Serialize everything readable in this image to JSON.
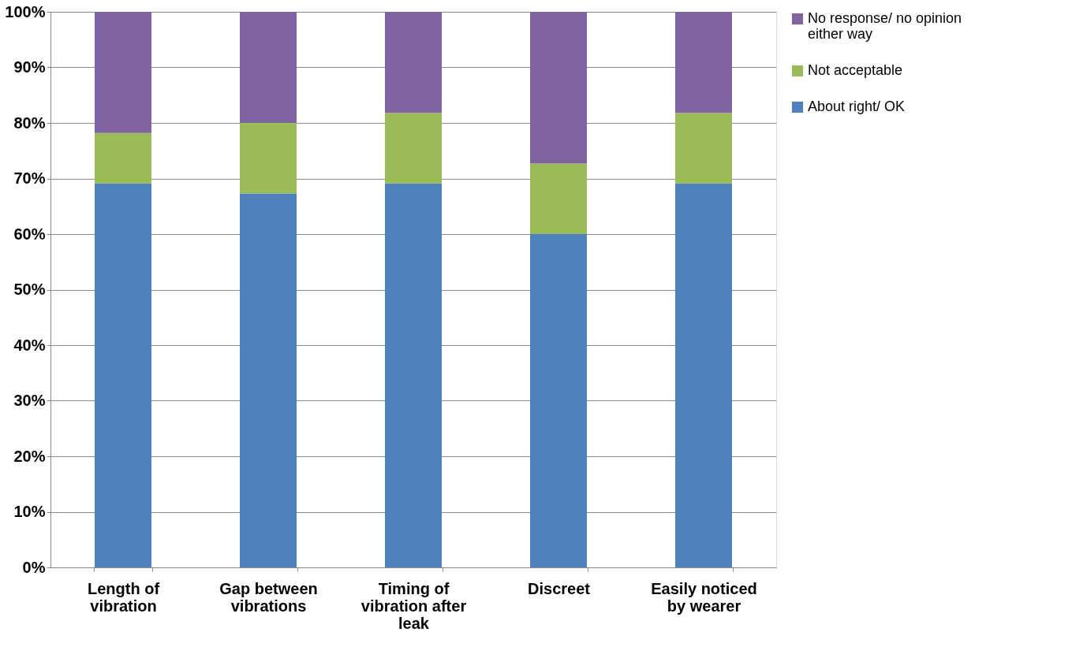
{
  "chart_data": {
    "type": "bar",
    "stacked": true,
    "categories": [
      "Length of vibration",
      "Gap between vibrations",
      "Timing of vibration after leak",
      "Discreet",
      "Easily noticed by wearer"
    ],
    "series": [
      {
        "name": "About right/ OK",
        "color": "#4f81bd",
        "values": [
          69.1,
          67.3,
          69.1,
          60.0,
          69.1
        ]
      },
      {
        "name": "Not acceptable",
        "color": "#9bbb59",
        "values": [
          9.1,
          12.7,
          12.7,
          12.7,
          12.7
        ]
      },
      {
        "name": "No response/ no opinion either way",
        "color": "#8064a2",
        "values": [
          21.8,
          20.0,
          18.2,
          27.3,
          18.2
        ]
      }
    ],
    "ylim": [
      0,
      100
    ],
    "yticks": [
      {
        "value": 0,
        "label": "0%"
      },
      {
        "value": 10,
        "label": "10%"
      },
      {
        "value": 20,
        "label": "20%"
      },
      {
        "value": 30,
        "label": "30%"
      },
      {
        "value": 40,
        "label": "40%"
      },
      {
        "value": 50,
        "label": "50%"
      },
      {
        "value": 60,
        "label": "60%"
      },
      {
        "value": 70,
        "label": "70%"
      },
      {
        "value": 80,
        "label": "80%"
      },
      {
        "value": 90,
        "label": "90%"
      },
      {
        "value": 100,
        "label": "100%"
      }
    ],
    "grid": "y",
    "legend": "right"
  }
}
